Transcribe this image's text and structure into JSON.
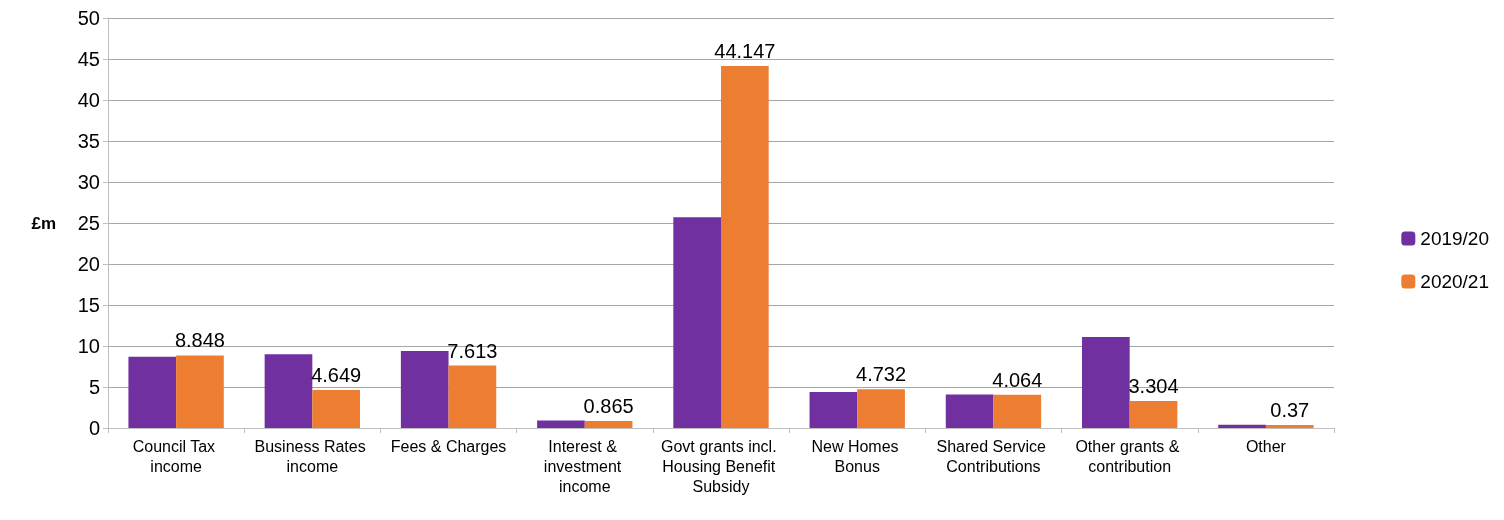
{
  "chart_data": {
    "type": "bar",
    "ylabel": "£m",
    "categories": [
      "Council Tax income",
      "Business Rates income",
      "Fees & Charges",
      "Interest & investment income",
      "Govt grants incl. Housing Benefit Subsidy",
      "New Homes Bonus",
      "Shared Service Contributions",
      "Other grants & contribution",
      "Other"
    ],
    "series": [
      {
        "name": "2019/20",
        "color": "#7030a0",
        "values": [
          8.7,
          9.0,
          9.4,
          0.9,
          25.7,
          4.4,
          4.1,
          11.1,
          0.4
        ]
      },
      {
        "name": "2020/21",
        "color": "#ed7d31",
        "values": [
          8.848,
          4.649,
          7.613,
          0.865,
          44.147,
          4.732,
          4.064,
          3.304,
          0.37
        ],
        "value_labels": [
          "8.848",
          "4.649",
          "7.613",
          "0.865",
          "44.147",
          "4.732",
          "4.064",
          "3.304",
          "0.37"
        ]
      }
    ],
    "ylim": [
      0,
      50
    ],
    "yticks": [
      0,
      5,
      10,
      15,
      20,
      25,
      30,
      35,
      40,
      45,
      50
    ],
    "grid": "y",
    "legend": "right"
  }
}
